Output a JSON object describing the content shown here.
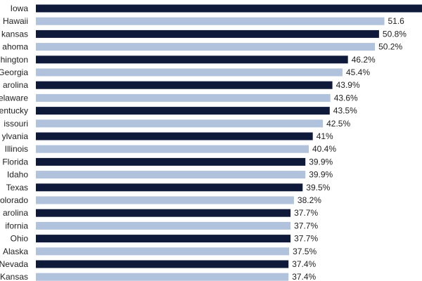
{
  "chart_data": {
    "type": "bar",
    "orientation": "horizontal",
    "categories": [
      "Iowa",
      "Hawaii",
      "Arkansas",
      "Oklahoma",
      "Washington",
      "Georgia",
      "North Carolina",
      "Delaware",
      "Kentucky",
      "Missouri",
      "Pennsylvania",
      "Illinois",
      "Florida",
      "Idaho",
      "Texas",
      "Colorado",
      "South Carolina",
      "California",
      "Ohio",
      "Alaska",
      "Nevada",
      "Kansas"
    ],
    "displayed_categories": [
      "Iowa",
      "Hawaii",
      "kansas",
      "ahoma",
      "hington",
      "Georgia",
      "arolina",
      "elaware",
      "entucky",
      "issouri",
      "ylvania",
      "Illinois",
      "Florida",
      "Idaho",
      "Texas",
      "olorado",
      "arolina",
      "ifornia",
      "Ohio",
      "Alaska",
      "Nevada",
      "Kansas"
    ],
    "values": [
      57.5,
      51.6,
      50.8,
      50.2,
      46.2,
      45.4,
      43.9,
      43.6,
      43.5,
      42.5,
      41,
      40.4,
      39.9,
      39.9,
      39.5,
      38.2,
      37.7,
      37.7,
      37.7,
      37.5,
      37.4,
      37.4
    ],
    "value_labels": [
      "",
      "51.6",
      "50.8%",
      "50.2%",
      "46.2%",
      "45.4%",
      "43.9%",
      "43.6%",
      "43.5%",
      "42.5%",
      "41%",
      "40.4%",
      "39.9%",
      "39.9%",
      "39.5%",
      "38.2%",
      "37.7%",
      "37.7%",
      "37.7%",
      "37.5%",
      "37.4%",
      "37.4%"
    ],
    "colors": {
      "dark": "#0f1a3a",
      "light": "#b0c2dc"
    },
    "xlim": [
      0,
      58
    ],
    "grid": false,
    "title": "",
    "xlabel": "",
    "ylabel": ""
  }
}
